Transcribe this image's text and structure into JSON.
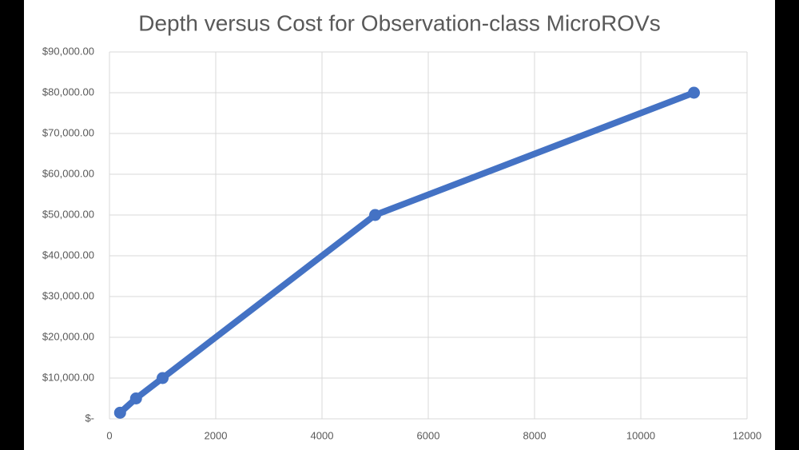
{
  "chart_data": {
    "type": "line",
    "title": "Depth versus Cost for Observation-class MicroROVs",
    "series": [
      {
        "color": "#4472c4",
        "x": [
          200,
          500,
          1000,
          5000,
          11000
        ],
        "values": [
          1500,
          5000,
          10000,
          50000,
          80000
        ]
      }
    ],
    "xlim": [
      0,
      12000
    ],
    "xticks": [
      0,
      2000,
      4000,
      6000,
      8000,
      10000,
      12000
    ],
    "ylim": [
      0,
      90000
    ],
    "yticks": [
      {
        "value": 0,
        "label": "$-"
      },
      {
        "value": 10000,
        "label": "$10,000.00"
      },
      {
        "value": 20000,
        "label": "$20,000.00"
      },
      {
        "value": 30000,
        "label": "$30,000.00"
      },
      {
        "value": 40000,
        "label": "$40,000.00"
      },
      {
        "value": 50000,
        "label": "$50,000.00"
      },
      {
        "value": 60000,
        "label": "$60,000.00"
      },
      {
        "value": 70000,
        "label": "$70,000.00"
      },
      {
        "value": 80000,
        "label": "$80,000.00"
      },
      {
        "value": 90000,
        "label": "$90,000.00"
      }
    ],
    "grid": true
  }
}
